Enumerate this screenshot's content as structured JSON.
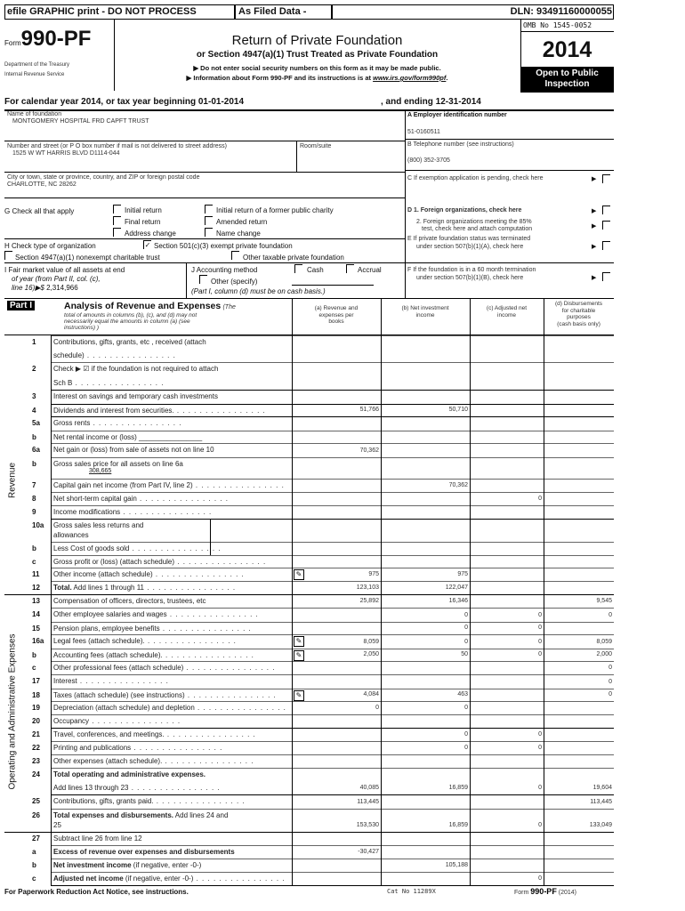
{
  "topbar": {
    "efile": "efile GRAPHIC print - DO NOT PROCESS",
    "as_filed": "As Filed Data -",
    "dln": "DLN: 93491160000055"
  },
  "header": {
    "form_prefix": "Form",
    "form_number": "990-PF",
    "dept1": "Department of the Treasury",
    "dept2": "Internal Revenue Service",
    "title": "Return of Private Foundation",
    "subtitle": "or Section 4947(a)(1) Trust Treated as Private Foundation",
    "note1": "▶  Do not enter social security numbers on this form as it may be made public.",
    "note2": "▶ Information about Form 990-PF and its instructions is at",
    "url": "www.irs.gov/form990pf",
    "omb": "OMB No 1545-0052",
    "year": "2014",
    "open_public": "Open to Public",
    "inspection": "Inspection"
  },
  "calendar": {
    "left": "For calendar year 2014, or tax year beginning 01-01-2014",
    "right": ", and ending 12-31-2014"
  },
  "org": {
    "name_label": "Name of foundation",
    "name": "MONTGOMERY HOSPITAL FRD CAPFT TRUST",
    "street_label": "Number and street (or P O  box number if mail is not delivered to street address)",
    "street": "1525 W WT HARRIS BLVD D1114-044",
    "room_label": "Room/suite",
    "city_label": "City or town, state or province, country, and ZIP or foreign postal code",
    "city": "CHARLOTTE, NC  28262",
    "ein_label": "A Employer identification number",
    "ein": "51-0160511",
    "phone_label": "B Telephone number (see instructions)",
    "phone": "(800) 352-3705",
    "c_label": "C If exemption application is pending, check here"
  },
  "g": {
    "label": "G Check all that apply",
    "items": [
      "Initial return",
      "Initial return of a former public charity",
      "Final return",
      "Amended return",
      "Address change",
      "Name change"
    ]
  },
  "h": {
    "label": "H Check type of organization",
    "opt1": "Section 501(c)(3) exempt private foundation",
    "opt2": "Section 4947(a)(1) nonexempt charitable trust",
    "opt3": "Other taxable private foundation"
  },
  "i": {
    "line1": "I Fair market value of all assets at end",
    "line2": "of year (from Part II, col. (c),",
    "line3": "line 16)▶$",
    "value": "2,314,966"
  },
  "j": {
    "label": "J Accounting method",
    "cash": "Cash",
    "accrual": "Accrual",
    "other": "Other (specify)",
    "note": "(Part I, column (d) must be on cash basis.)"
  },
  "right_checks": {
    "d1": "D 1. Foreign organizations, check here",
    "d2a": "2. Foreign organizations meeting the 85%",
    "d2b": "test, check here and attach computation",
    "e1": "E  If private foundation status was terminated",
    "e2": "under section 507(b)(1)(A), check here",
    "f1": "F  If the foundation is in a 60 month termination",
    "f2": "under section 507(b)(1)(B), check here"
  },
  "part1": {
    "badge": "Part I",
    "title": "Analysis of Revenue and Expenses",
    "title_note": "(The",
    "desc1": "total of amounts in columns (b), (c), and (d) may not",
    "desc2": "necessarily equal the amounts in column (a) (see",
    "desc3": "instructions) )",
    "col_a": [
      "(a) Revenue and",
      "expenses per",
      "books"
    ],
    "col_b": [
      "(b) Net investment",
      "income"
    ],
    "col_c": [
      "(c) Adjusted net",
      "income"
    ],
    "col_d": [
      "(d) Disbursements",
      "for charitable",
      "purposes",
      "(cash basis only)"
    ],
    "side_revenue": "Revenue",
    "side_expenses": "Operating and Administrative Expenses"
  },
  "rows": [
    {
      "num": "1",
      "bold": "",
      "text": "Contributions, gifts, grants, etc , received (attach",
      "text2": "schedule)",
      "dots": true,
      "a": "",
      "b": "",
      "c": "",
      "d": ""
    },
    {
      "num": "2",
      "bold": "",
      "text": "Check ▶ ☑ if the foundation is not required to attach",
      "text2": "Sch B",
      "dots": true,
      "a": "",
      "b": "",
      "c": "",
      "d": ""
    },
    {
      "num": "3",
      "bold": "",
      "text": "Interest on savings and temporary cash investments",
      "a": "",
      "b": "",
      "c": "",
      "d": ""
    },
    {
      "num": "4",
      "bold": "",
      "text": "Dividends and interest from securities.",
      "dots": true,
      "a": "51,766",
      "b": "50,710",
      "c": "",
      "d": ""
    },
    {
      "num": "5a",
      "bold": "",
      "text": "Gross rents",
      "dots": true,
      "a": "",
      "b": "",
      "c": "",
      "d": ""
    },
    {
      "num": "b",
      "bold": "",
      "text": "Net rental income or (loss) ________________",
      "a": "",
      "b": "",
      "c": "",
      "d": ""
    },
    {
      "num": "6a",
      "bold": "",
      "text": "Net gain or (loss) from sale of assets not on line 10",
      "a": "70,362",
      "b": "",
      "c": "",
      "d": ""
    },
    {
      "num": "b",
      "bold": "",
      "text": "Gross sales price for all assets on line 6a",
      "text2": "308,665",
      "a": "",
      "b": "",
      "c": "",
      "d": ""
    },
    {
      "num": "7",
      "bold": "",
      "text": "Capital gain net income (from Part IV, line 2)",
      "dots": true,
      "a": "",
      "b": "70,362",
      "c": "",
      "d": ""
    },
    {
      "num": "8",
      "bold": "",
      "text": "Net short-term capital gain",
      "dots": true,
      "a": "",
      "b": "",
      "c": "0",
      "d": ""
    },
    {
      "num": "9",
      "bold": "",
      "text": "Income modifications",
      "dots": true,
      "a": "",
      "b": "",
      "c": "",
      "d": ""
    },
    {
      "num": "10a",
      "bold": "",
      "text": "Gross sales less returns and",
      "text2": "allowances",
      "a": "",
      "b": "",
      "c": "",
      "d": ""
    },
    {
      "num": "b",
      "bold": "",
      "text": "Less  Cost of goods sold",
      "dots": true,
      "a": "",
      "b": "",
      "c": "",
      "d": ""
    },
    {
      "num": "c",
      "bold": "",
      "text": "Gross profit or (loss) (attach schedule)",
      "dots": true,
      "a": "",
      "b": "",
      "c": "",
      "d": ""
    },
    {
      "num": "11",
      "bold": "",
      "text": "Other income (attach schedule)",
      "dots": true,
      "icon": true,
      "a": "975",
      "b": "975",
      "c": "",
      "d": ""
    },
    {
      "num": "12",
      "bold": "Total.",
      "text": " Add lines 1 through 11",
      "dots": true,
      "a": "123,103",
      "b": "122,047",
      "c": "",
      "d": ""
    },
    {
      "num": "13",
      "bold": "",
      "text": "Compensation of officers, directors, trustees, etc",
      "a": "25,892",
      "b": "16,346",
      "c": "",
      "d": "9,545"
    },
    {
      "num": "14",
      "bold": "",
      "text": "Other employee salaries and wages",
      "dots": true,
      "a": "",
      "b": "0",
      "c": "0",
      "d": "0"
    },
    {
      "num": "15",
      "bold": "",
      "text": "Pension plans, employee benefits",
      "dots": true,
      "a": "",
      "b": "0",
      "c": "0",
      "d": ""
    },
    {
      "num": "16a",
      "bold": "",
      "text": "Legal fees (attach schedule).",
      "dots": true,
      "icon": true,
      "a": "8,059",
      "b": "0",
      "c": "0",
      "d": "8,059"
    },
    {
      "num": "b",
      "bold": "",
      "text": "Accounting fees (attach schedule).",
      "dots": true,
      "icon": true,
      "a": "2,050",
      "b": "50",
      "c": "0",
      "d": "2,000"
    },
    {
      "num": "c",
      "bold": "",
      "text": "Other professional fees (attach schedule)",
      "dots": true,
      "a": "",
      "b": "",
      "c": "",
      "d": "0"
    },
    {
      "num": "17",
      "bold": "",
      "text": "Interest",
      "dots": true,
      "a": "",
      "b": "",
      "c": "",
      "d": "0"
    },
    {
      "num": "18",
      "bold": "",
      "text": "Taxes (attach schedule) (see instructions)",
      "dots": true,
      "icon": true,
      "a": "4,084",
      "b": "463",
      "c": "",
      "d": "0"
    },
    {
      "num": "19",
      "bold": "",
      "text": "Depreciation (attach schedule) and depletion",
      "dots": true,
      "a": "0",
      "b": "0",
      "c": "",
      "d": ""
    },
    {
      "num": "20",
      "bold": "",
      "text": "Occupancy",
      "dots": true,
      "a": "",
      "b": "",
      "c": "",
      "d": ""
    },
    {
      "num": "21",
      "bold": "",
      "text": "Travel, conferences, and meetings.",
      "dots": true,
      "a": "",
      "b": "0",
      "c": "0",
      "d": ""
    },
    {
      "num": "22",
      "bold": "",
      "text": "Printing and publications",
      "dots": true,
      "a": "",
      "b": "0",
      "c": "0",
      "d": ""
    },
    {
      "num": "23",
      "bold": "",
      "text": "Other expenses (attach schedule).",
      "dots": true,
      "a": "",
      "b": "",
      "c": "",
      "d": ""
    },
    {
      "num": "24",
      "bold": "Total operating and administrative expenses.",
      "text": "",
      "text2": "Add lines 13 through 23",
      "dots": true,
      "a": "40,085",
      "b": "16,859",
      "c": "0",
      "d": "19,604"
    },
    {
      "num": "25",
      "bold": "",
      "text": "Contributions, gifts, grants paid.",
      "dots": true,
      "a": "113,445",
      "b": "",
      "c": "",
      "d": "113,445"
    },
    {
      "num": "26",
      "bold": "Total expenses and disbursements.",
      "text": " Add lines 24 and",
      "text2": "25",
      "a": "153,530",
      "b": "16,859",
      "c": "0",
      "d": "133,049"
    },
    {
      "num": "27",
      "bold": "",
      "text": "Subtract line 26 from line 12",
      "a": "",
      "b": "",
      "c": "",
      "d": ""
    },
    {
      "num": "a",
      "bold": "Excess of revenue over expenses and disbursements",
      "text": "",
      "a": "-30,427",
      "b": "",
      "c": "",
      "d": ""
    },
    {
      "num": "b",
      "bold": "Net investment income",
      "text": " (if negative, enter -0-)",
      "a": "",
      "b": "105,188",
      "c": "",
      "d": ""
    },
    {
      "num": "c",
      "bold": "Adjusted net income",
      "text": " (if negative, enter -0-)",
      "dots": true,
      "a": "",
      "b": "",
      "c": "0",
      "d": ""
    }
  ],
  "footer": {
    "left": "For Paperwork Reduction Act Notice, see instructions.",
    "cat": "Cat No 11289X",
    "form_prefix": "Form",
    "form": "990-PF",
    "year": "(2014)"
  }
}
